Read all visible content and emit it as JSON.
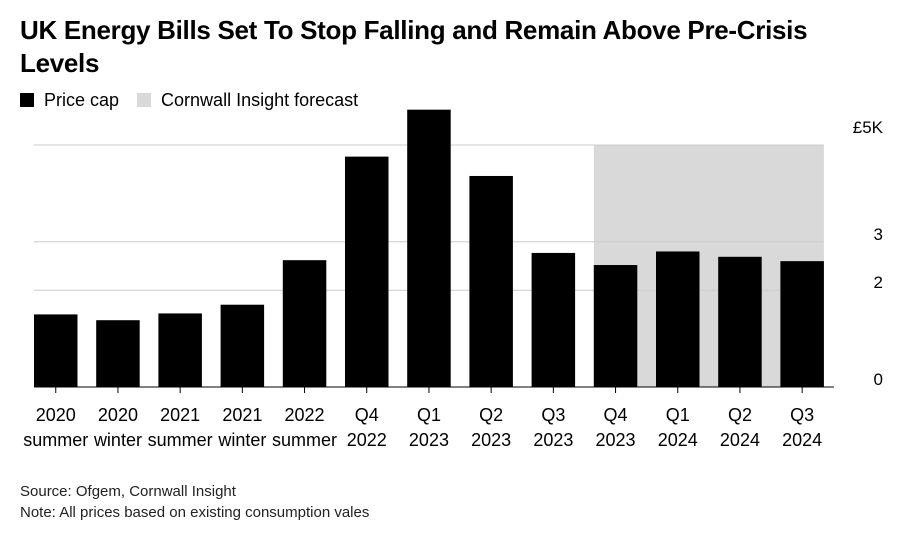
{
  "chart_data": {
    "type": "bar",
    "title": "UK Energy Bills Set To Stop Falling and Remain Above Pre-Crisis Levels",
    "unit_label": "£5K",
    "categories": [
      [
        "2020",
        "summer"
      ],
      [
        "2020",
        "winter"
      ],
      [
        "2021",
        "summer"
      ],
      [
        "2021",
        "winter"
      ],
      [
        "2022",
        "summer"
      ],
      [
        "Q4",
        "2022"
      ],
      [
        "Q1",
        "2023"
      ],
      [
        "Q2",
        "2023"
      ],
      [
        "Q3",
        "2023"
      ],
      [
        "Q4",
        "2023"
      ],
      [
        "Q1",
        "2024"
      ],
      [
        "Q2",
        "2024"
      ],
      [
        "Q3",
        "2024"
      ]
    ],
    "series": [
      {
        "name": "Price cap",
        "color": "#000000",
        "values": [
          1.5,
          1.38,
          1.52,
          1.7,
          2.62,
          4.76,
          5.73,
          4.36,
          2.77,
          2.52,
          2.8,
          2.69,
          2.6
        ]
      }
    ],
    "forecast": {
      "name": "Cornwall Insight forecast",
      "color": "#d9d9d9",
      "start_index": 9,
      "end_index": 12
    },
    "ylim": [
      0,
      5
    ],
    "yticks": [
      {
        "value": 0,
        "label": "0"
      },
      {
        "value": 2,
        "label": "2"
      },
      {
        "value": 3,
        "label": "3"
      },
      {
        "value": 5,
        "label": "£5K"
      }
    ],
    "grid": true,
    "legend_position": "top-left"
  },
  "footer": {
    "source": "Source: Ofgem, Cornwall Insight",
    "note": "Note: All prices based on existing consumption vales"
  }
}
